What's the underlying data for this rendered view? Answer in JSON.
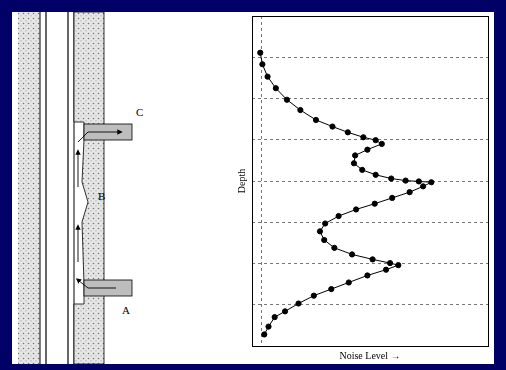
{
  "chart_data": {
    "type": "line",
    "x_label": "Noise Level →",
    "y_label": "Depth",
    "x": [
      0.35,
      0.44,
      0.66,
      1.01,
      1.48,
      2.05,
      2.71,
      3.41,
      4.06,
      4.72,
      5.24,
      5.5,
      4.89,
      4.37,
      4.32,
      4.67,
      5.24,
      5.9,
      6.51,
      7.07,
      7.6,
      7.25,
      6.68,
      5.94,
      5.2,
      4.41,
      3.67,
      3.1,
      2.88,
      3.06,
      3.49,
      4.24,
      5.11,
      5.85,
      6.2,
      5.68,
      4.89,
      4.1,
      3.36,
      2.62,
      1.97,
      1.4,
      0.96,
      0.7,
      0.52
    ],
    "values": [
      0.89,
      1.17,
      1.47,
      1.75,
      2.03,
      2.28,
      2.52,
      2.68,
      2.82,
      2.94,
      3.01,
      3.1,
      3.24,
      3.38,
      3.57,
      3.73,
      3.85,
      3.94,
      3.99,
      4.01,
      4.03,
      4.13,
      4.27,
      4.41,
      4.55,
      4.69,
      4.85,
      5.03,
      5.22,
      5.43,
      5.62,
      5.78,
      5.9,
      5.99,
      6.04,
      6.15,
      6.29,
      6.46,
      6.62,
      6.78,
      6.97,
      7.16,
      7.3,
      7.53,
      7.72
    ],
    "xlim": [
      0,
      10
    ],
    "ylim": [
      8,
      0
    ],
    "xticks": [
      0.4
    ],
    "yticks": [
      1,
      2,
      3,
      4,
      5,
      6,
      7
    ],
    "grid": true,
    "tick_labels": false,
    "color": "#000000",
    "marker": "circle",
    "line_style": "solid"
  },
  "well_diagram": {
    "labels": [
      "A",
      "B",
      "C"
    ]
  }
}
